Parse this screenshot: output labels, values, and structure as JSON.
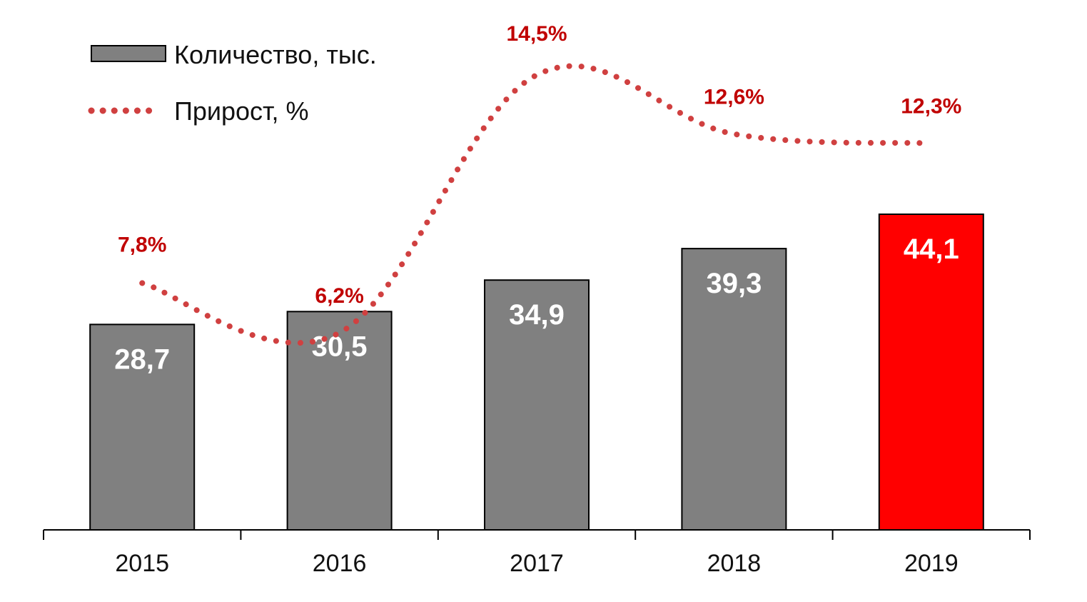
{
  "chart_data": {
    "type": "bar",
    "categories": [
      "2015",
      "2016",
      "2017",
      "2018",
      "2019"
    ],
    "series": [
      {
        "name": "Количество, тыс.",
        "type": "bar",
        "values": [
          28.7,
          30.5,
          34.9,
          39.3,
          44.1
        ],
        "labels": [
          "28,7",
          "30,5",
          "34,9",
          "39,3",
          "44,1"
        ],
        "colors": [
          "#808080",
          "#808080",
          "#808080",
          "#808080",
          "#ff0000"
        ]
      },
      {
        "name": "Прирост, %",
        "type": "line",
        "style": "dotted",
        "color": "#d04040",
        "values": [
          7.8,
          6.2,
          14.5,
          12.6,
          12.3
        ],
        "labels": [
          "7,8%",
          "6,2%",
          "14,5%",
          "12,6%",
          "12,3%"
        ]
      }
    ],
    "legend": {
      "position": "top-left",
      "items": [
        "Количество, тыс.",
        "Прирост, %"
      ]
    },
    "title": "",
    "xlabel": "",
    "ylabel": "",
    "ylim_bars": [
      0,
      50
    ],
    "ylim_line": [
      3,
      18
    ],
    "grid": false
  }
}
